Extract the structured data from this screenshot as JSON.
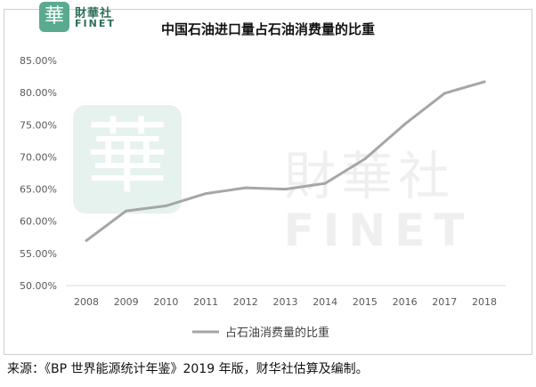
{
  "logo": {
    "glyph": "華",
    "name_cn": "財華社",
    "name_en": "FINET"
  },
  "watermark": {
    "glyph": "華",
    "name_cn": "財華社",
    "name_en": "FINET"
  },
  "source_note": "来源：《BP 世界能源统计年鉴》2019 年版，财华社估算及编制。",
  "chart_data": {
    "type": "line",
    "title": "中国石油进口量占石油消费量的比重",
    "xlabel": "",
    "ylabel": "",
    "x": [
      "2008",
      "2009",
      "2010",
      "2011",
      "2012",
      "2013",
      "2014",
      "2015",
      "2016",
      "2017",
      "2018"
    ],
    "series": [
      {
        "name": "占石油消费量的比重",
        "color": "#a6a6a6",
        "values": [
          0.57,
          0.616,
          0.624,
          0.643,
          0.652,
          0.65,
          0.659,
          0.697,
          0.751,
          0.799,
          0.817
        ]
      }
    ],
    "ylim": [
      0.5,
      0.85
    ],
    "yticks": [
      "50.00%",
      "55.00%",
      "60.00%",
      "65.00%",
      "70.00%",
      "75.00%",
      "80.00%",
      "85.00%"
    ],
    "grid": false,
    "legend_position": "bottom"
  }
}
